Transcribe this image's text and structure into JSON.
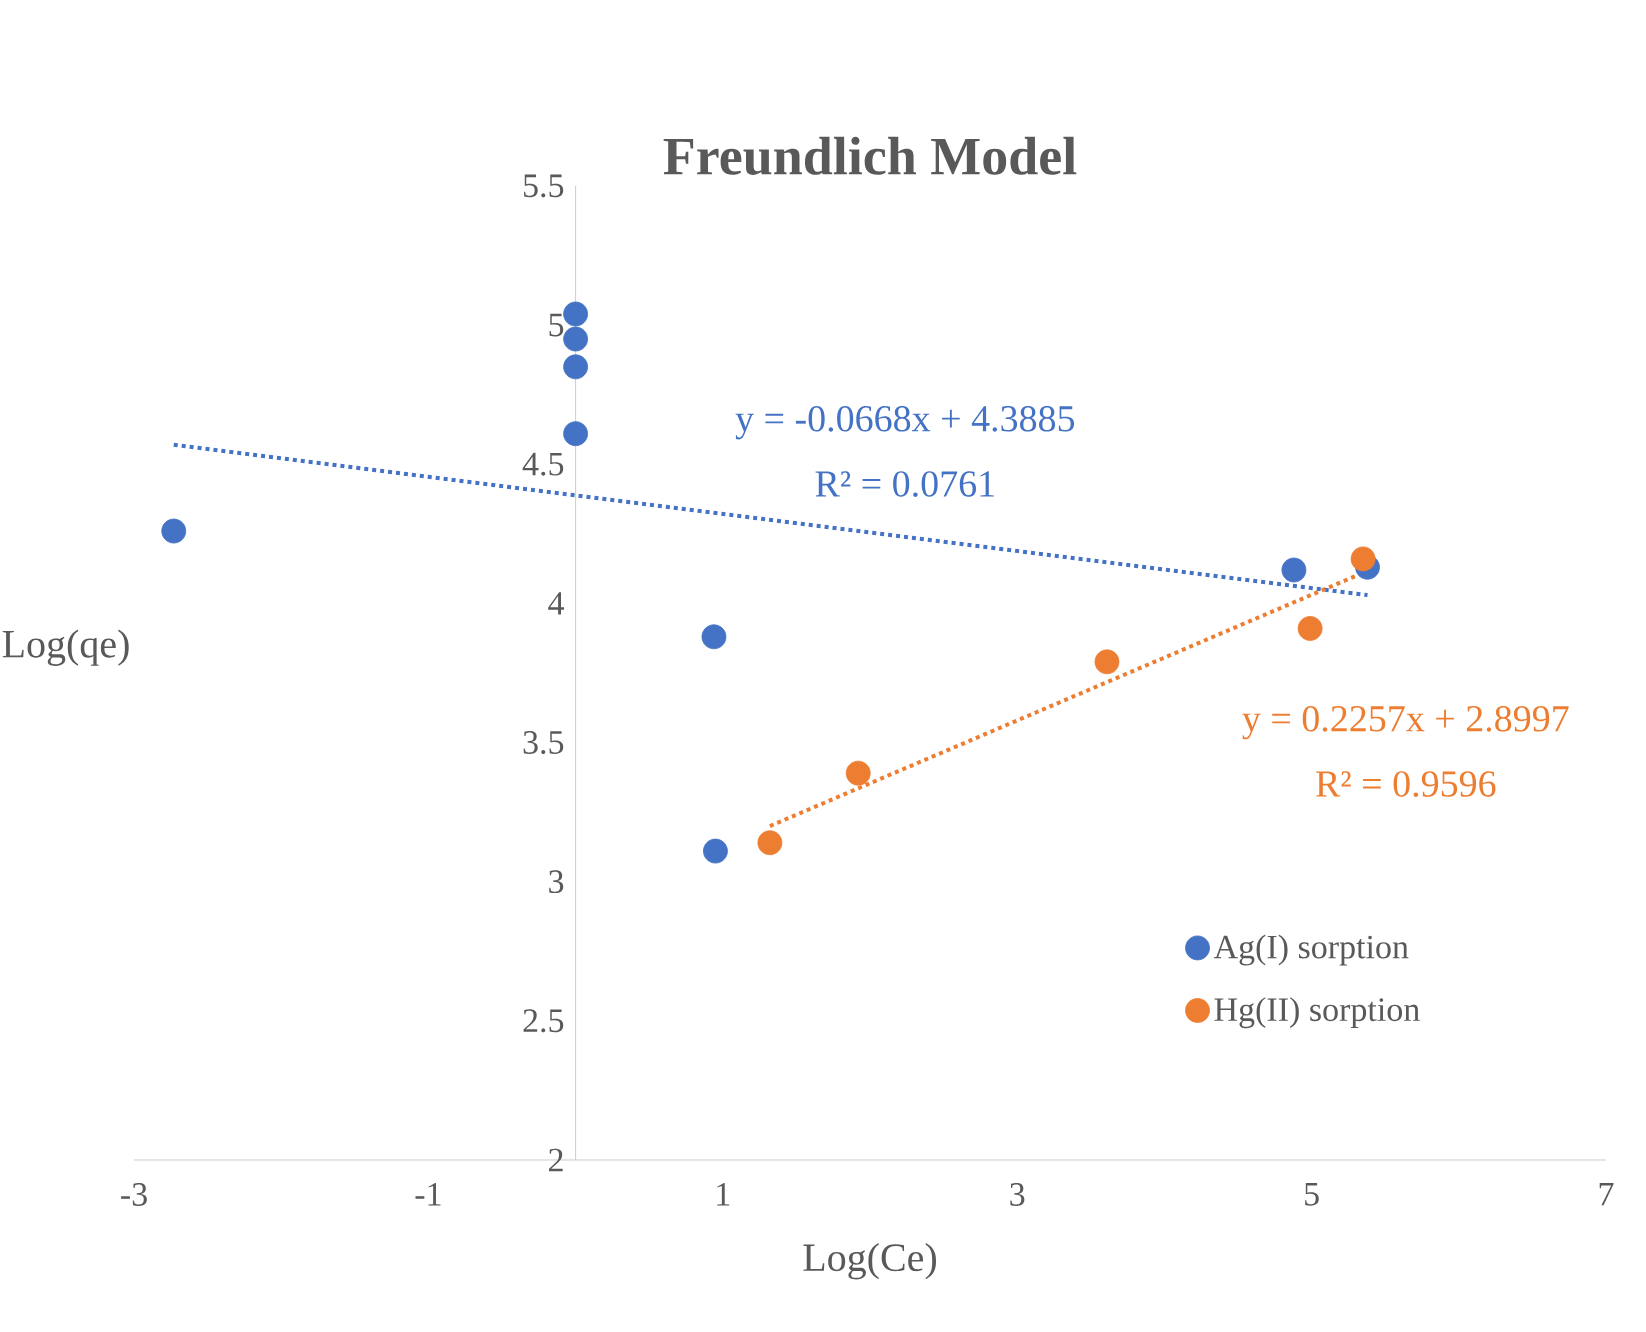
{
  "chart_data": {
    "type": "scatter",
    "title": "Freundlich Model",
    "xlabel": "Log(Ce)",
    "ylabel": "Log(qe)",
    "xlim": [
      -3,
      7
    ],
    "ylim": [
      2,
      5.5
    ],
    "xticks": [
      -3,
      -1,
      1,
      3,
      5,
      7
    ],
    "yticks": [
      2,
      2.5,
      3,
      3.5,
      4,
      4.5,
      5,
      5.5
    ],
    "grid": false,
    "legend": "bottom right",
    "marker": "circle",
    "series": [
      {
        "name": "Ag(I) sorption",
        "color": "#4472c4",
        "x": [
          -2.73,
          0,
          0,
          0,
          0,
          0.94,
          0.95,
          4.88,
          5.38
        ],
        "values": [
          4.26,
          5.04,
          4.95,
          4.85,
          4.61,
          3.88,
          3.11,
          4.12,
          4.13
        ]
      },
      {
        "name": "Hg(II) sorption",
        "color": "#ed7d31",
        "x": [
          1.32,
          1.92,
          3.61,
          4.99,
          5.35
        ],
        "values": [
          3.14,
          3.39,
          3.79,
          3.91,
          4.16
        ]
      },
      {
        "type": "line",
        "color": "#4472c4",
        "line_style": "dotted",
        "marker": "none",
        "x": [
          -2.73,
          5.38
        ],
        "values": [
          4.57,
          4.03
        ]
      },
      {
        "type": "line",
        "color": "#ed7d31",
        "line_style": "dotted",
        "marker": "none",
        "x": [
          1.32,
          5.35
        ],
        "values": [
          3.2,
          4.11
        ]
      }
    ],
    "annotations": [
      "y = -0.0668x + 4.3885",
      "R² = 0.0761",
      "y = 0.2257x + 2.8997",
      "R² = 0.9596"
    ]
  }
}
